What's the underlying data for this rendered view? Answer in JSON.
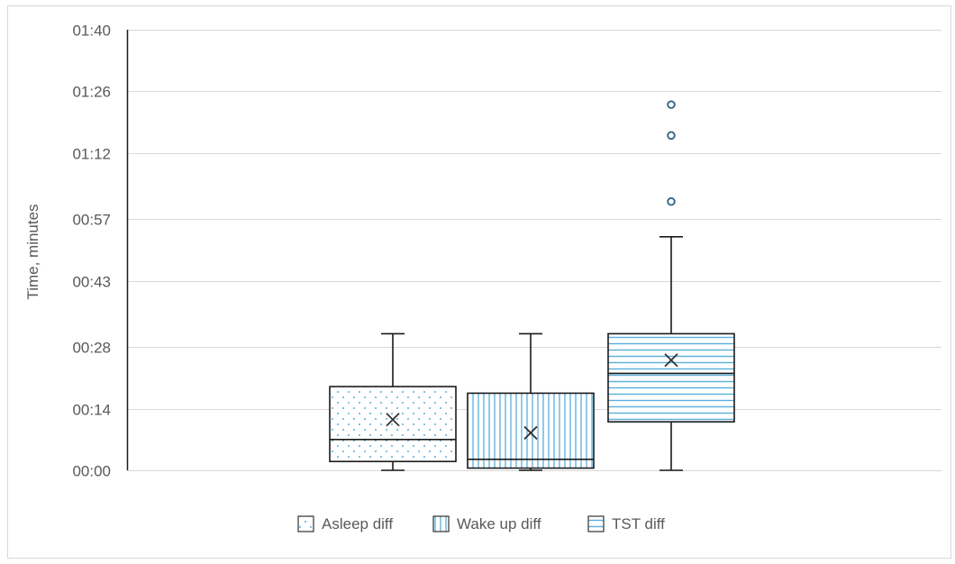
{
  "chart_data": {
    "type": "box",
    "title": "",
    "xlabel": "",
    "ylabel": "Time, minutes",
    "y_unit": "minutes",
    "ylim": [
      0,
      100
    ],
    "yticks": [
      0,
      14,
      28,
      43,
      57,
      72,
      86,
      100
    ],
    "ytick_labels": [
      "00:00",
      "00:14",
      "00:28",
      "00:43",
      "00:57",
      "01:12",
      "01:26",
      "01:40"
    ],
    "grid": true,
    "legend_position": "bottom",
    "series": [
      {
        "name": "Asleep diff",
        "pattern": "dots",
        "min": 0,
        "q1": 2,
        "median": 7,
        "q3": 19,
        "max": 31,
        "mean": 11.5,
        "outliers": []
      },
      {
        "name": "Wake up diff",
        "pattern": "vertical-lines",
        "min": 0,
        "q1": 0.5,
        "median": 2.5,
        "q3": 17.5,
        "max": 31,
        "mean": 8.5,
        "outliers": []
      },
      {
        "name": "TST diff",
        "pattern": "horizontal-lines",
        "min": 0,
        "q1": 11,
        "median": 22,
        "q3": 31,
        "max": 53,
        "mean": 25,
        "outliers": [
          61,
          76,
          83
        ]
      }
    ],
    "colors": {
      "pattern": "#5aaedc",
      "box_stroke": "#1a1a1a",
      "grid": "#d9d9d9",
      "axis": "#1a1a1a",
      "text": "#595959",
      "outlier": "#3d6a8a"
    }
  }
}
